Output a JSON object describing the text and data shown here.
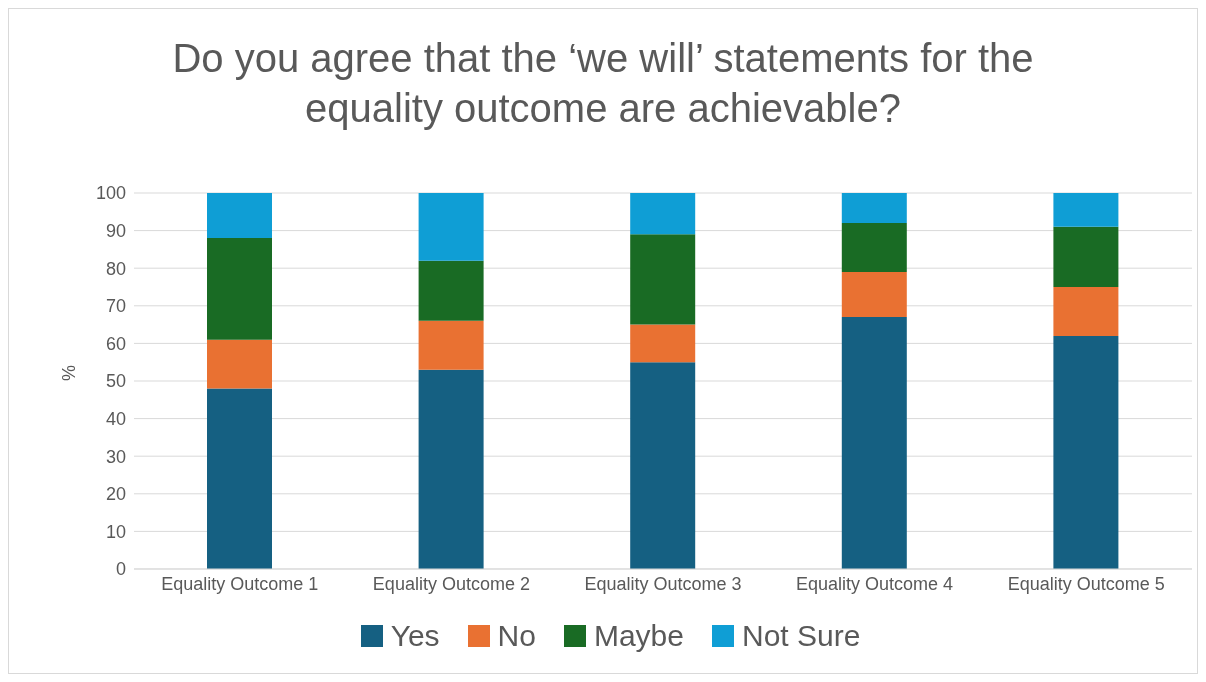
{
  "chart_data": {
    "type": "bar",
    "title": "Do you agree that the ‘we will’ statements for the equality outcome are achievable?",
    "ylabel": "%",
    "categories": [
      "Equality Outcome 1",
      "Equality Outcome 2",
      "Equality Outcome 3",
      "Equality Outcome 4",
      "Equality Outcome 5"
    ],
    "stacked": true,
    "series": [
      {
        "name": "Yes",
        "color": "#156082",
        "values": [
          48,
          53,
          55,
          67,
          62
        ]
      },
      {
        "name": "No",
        "color": "#e97132",
        "values": [
          13,
          13,
          10,
          12,
          13
        ]
      },
      {
        "name": "Maybe",
        "color": "#196b24",
        "values": [
          27,
          16,
          24,
          13,
          16
        ]
      },
      {
        "name": "Not Sure",
        "color": "#0f9ed5",
        "values": [
          12,
          18,
          11,
          8,
          9
        ]
      }
    ],
    "ylim": [
      0,
      100
    ],
    "yticks": [
      0,
      10,
      20,
      30,
      40,
      50,
      60,
      70,
      80,
      90,
      100
    ],
    "grid": "y",
    "legend": "bottom"
  }
}
